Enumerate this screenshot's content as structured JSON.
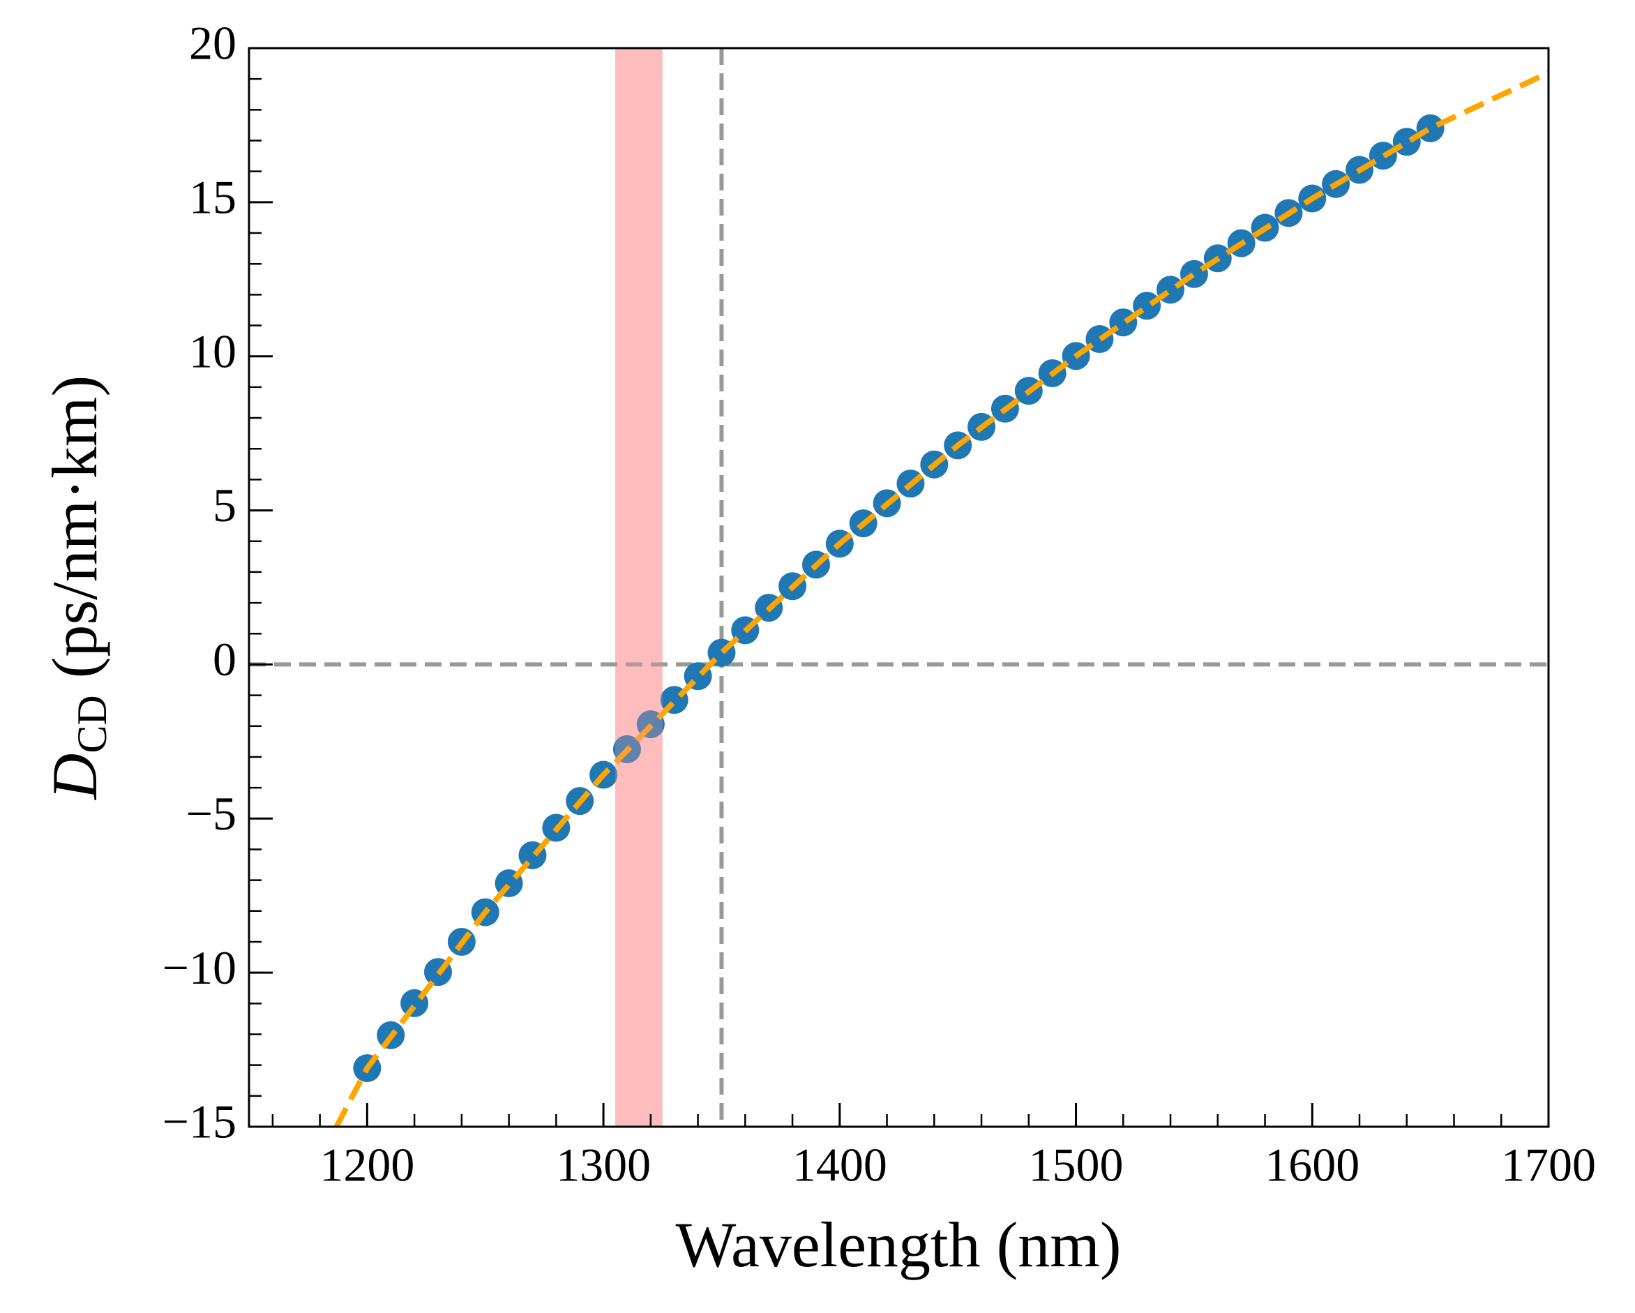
{
  "chart_data": {
    "type": "scatter",
    "xlabel": "Wavelength (nm)",
    "ylabel": {
      "symbol": "D",
      "subscript": "CD",
      "unit": "(ps/nm·km)"
    },
    "xlim": [
      1150,
      1700
    ],
    "ylim": [
      -15,
      20
    ],
    "xticks": [
      1200,
      1300,
      1400,
      1500,
      1600,
      1700
    ],
    "yticks": [
      {
        "value": -15,
        "label": "−15"
      },
      {
        "value": -10,
        "label": "−10"
      },
      {
        "value": -5,
        "label": "−5"
      },
      0,
      5,
      10,
      15,
      20
    ],
    "series": [
      {
        "color": "#1f77b4",
        "x": [
          1200,
          1210,
          1220,
          1230,
          1240,
          1250,
          1260,
          1270,
          1280,
          1290,
          1300,
          1310,
          1320,
          1330,
          1340,
          1350,
          1360,
          1370,
          1380,
          1390,
          1400,
          1410,
          1420,
          1430,
          1440,
          1450,
          1460,
          1470,
          1480,
          1490,
          1500,
          1510,
          1520,
          1530,
          1540,
          1550,
          1560,
          1570,
          1580,
          1590,
          1600,
          1610,
          1620,
          1630,
          1640,
          1650
        ],
        "values": [
          -13.1,
          -12.03,
          -10.99,
          -9.98,
          -9.0,
          -8.04,
          -7.1,
          -6.19,
          -5.3,
          -4.43,
          -3.58,
          -2.75,
          -1.94,
          -1.15,
          -0.38,
          0.38,
          1.11,
          1.84,
          2.54,
          3.24,
          3.92,
          4.58,
          5.23,
          5.87,
          6.49,
          7.11,
          7.71,
          8.3,
          8.88,
          9.45,
          10.01,
          10.56,
          11.1,
          11.64,
          12.16,
          12.67,
          13.18,
          13.67,
          14.17,
          14.65,
          15.12,
          15.59,
          16.05,
          16.51,
          16.96,
          17.4
        ]
      },
      {
        "color": "#ffa500",
        "style": "dashed",
        "x": [
          1187,
          1200,
          1250,
          1300,
          1350,
          1400,
          1450,
          1500,
          1550,
          1600,
          1650,
          1700
        ],
        "values": [
          -15,
          -13.1,
          -8.04,
          -3.58,
          0.38,
          3.92,
          7.11,
          10.01,
          12.67,
          15.12,
          17.4,
          19.2
        ]
      }
    ],
    "bands": [
      {
        "x": [
          1305,
          1325
        ],
        "color": "#ff9999"
      }
    ],
    "reference_lines": {
      "x": 1350,
      "y": 0,
      "color": "#999999"
    }
  }
}
